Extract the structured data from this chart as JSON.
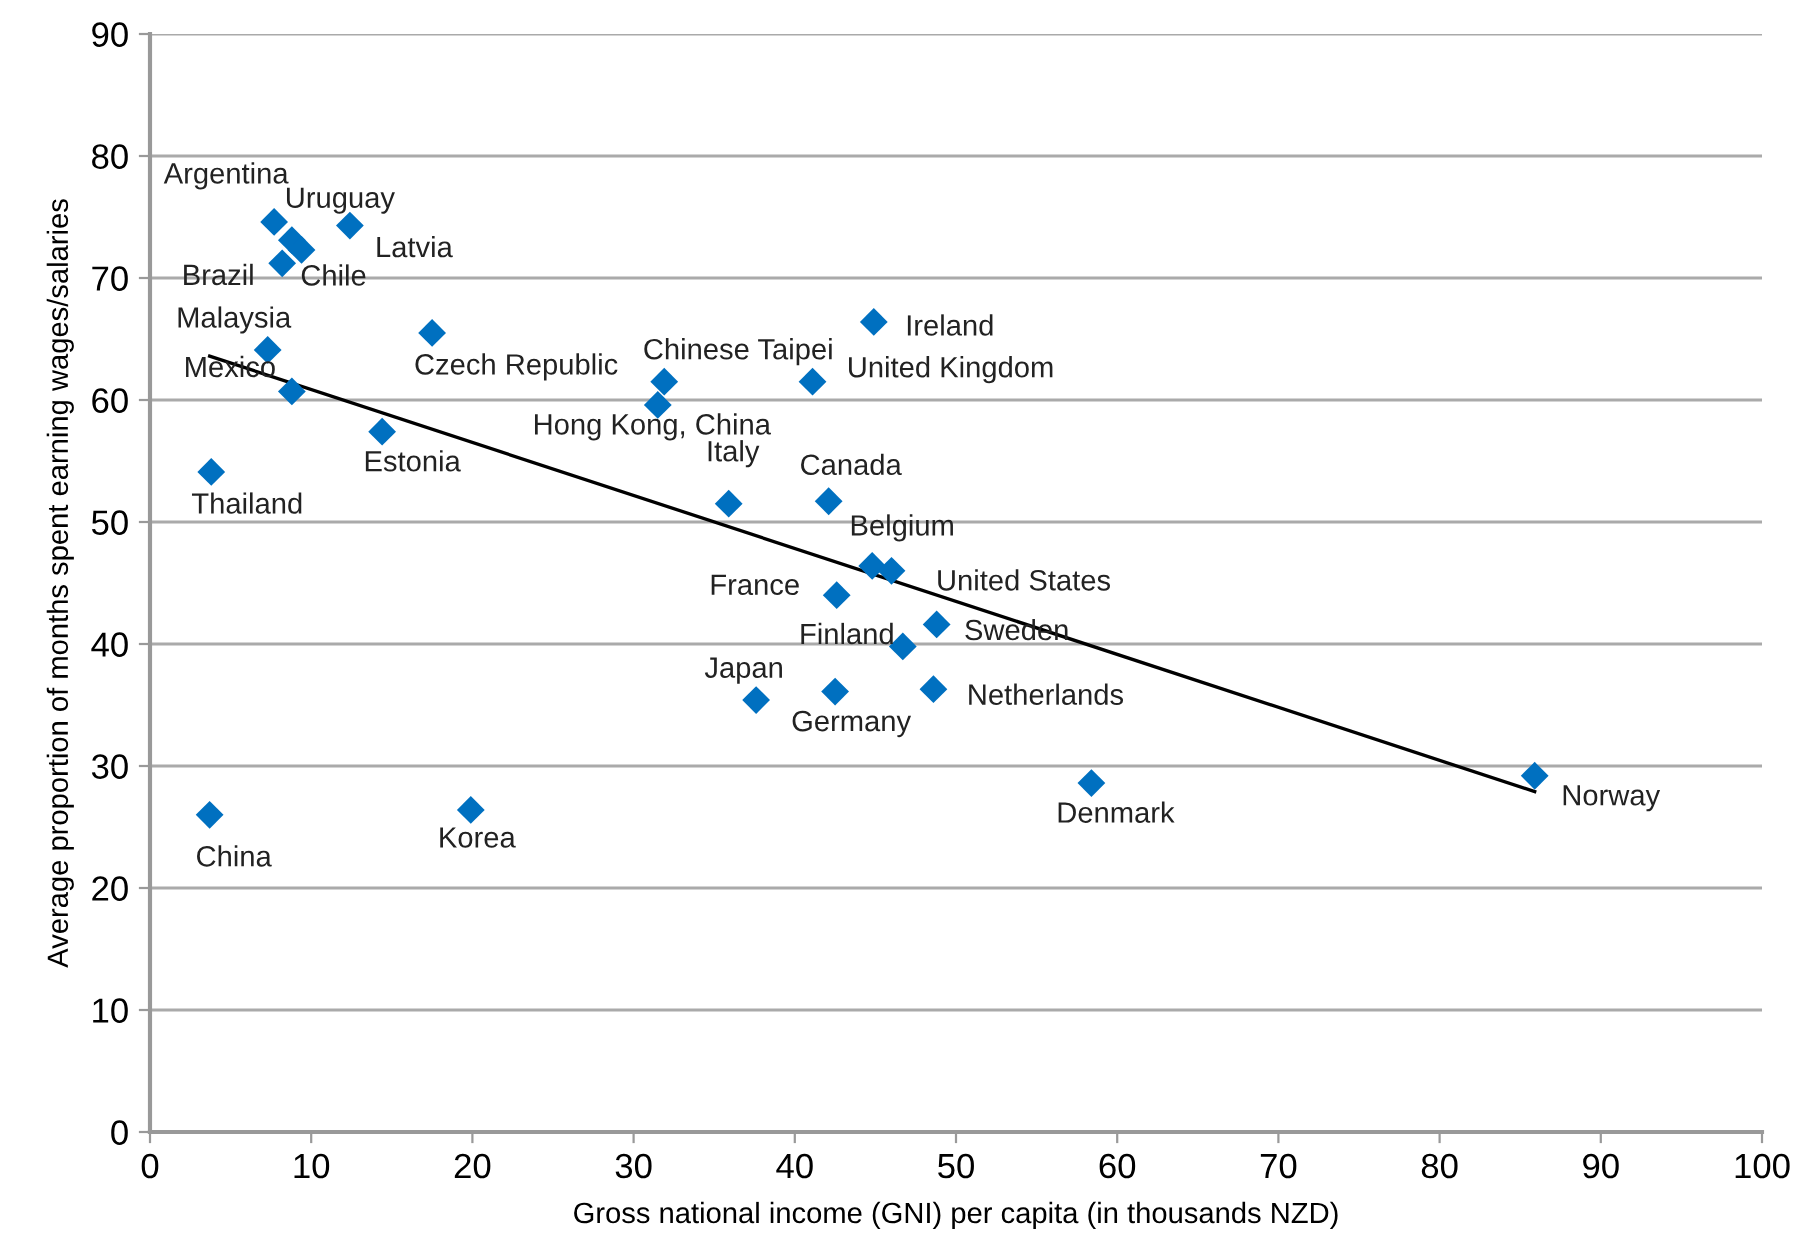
{
  "chart_data": {
    "type": "scatter",
    "xlabel": "Gross national income (GNI) per capita (in thousands NZD)",
    "ylabel": "Average proportion of months spent earning wages/salaries",
    "xlim": [
      0,
      100
    ],
    "xticks": [
      0,
      10,
      20,
      30,
      40,
      50,
      60,
      70,
      80,
      90,
      100
    ],
    "ylim": [
      0,
      90
    ],
    "yticks": [
      0,
      10,
      20,
      30,
      40,
      50,
      60,
      70,
      80,
      90
    ],
    "grid": "y",
    "legend": false,
    "series": [
      {
        "marker": "diamond",
        "color": "#0070c0",
        "x": [
          7.7,
          8.8,
          9.4,
          8.2,
          12.4,
          7.3,
          8.8,
          3.8,
          17.5,
          14.4,
          31.9,
          31.5,
          35.9,
          42.1,
          44.9,
          41.1,
          44.8,
          46.0,
          42.6,
          48.8,
          46.7,
          37.6,
          42.5,
          48.6,
          58.4,
          85.9,
          3.7,
          19.9
        ],
        "values": [
          74.6,
          73.1,
          72.3,
          71.2,
          74.3,
          64.1,
          60.7,
          54.1,
          65.5,
          57.4,
          61.5,
          59.6,
          51.5,
          51.7,
          66.4,
          61.5,
          46.4,
          46.0,
          44.0,
          41.6,
          39.8,
          35.4,
          36.1,
          36.3,
          28.6,
          29.2,
          26.0,
          26.4
        ]
      },
      {
        "type": "line",
        "color": "#000000",
        "x": [
          3.7,
          85.9
        ],
        "values": [
          63.6,
          27.9
        ]
      }
    ],
    "annotations": [
      {
        "text": "Argentina",
        "x": 7.7,
        "y": 74.6
      },
      {
        "text": "Uruguay",
        "x": 8.8,
        "y": 73.1
      },
      {
        "text": "Chile",
        "x": 9.4,
        "y": 72.3
      },
      {
        "text": "Brazil",
        "x": 8.2,
        "y": 71.2
      },
      {
        "text": "Latvia",
        "x": 12.4,
        "y": 74.3
      },
      {
        "text": "Malaysia",
        "x": 7.3,
        "y": 64.1
      },
      {
        "text": "Mexico",
        "x": 8.8,
        "y": 60.7
      },
      {
        "text": "Thailand",
        "x": 3.8,
        "y": 54.1
      },
      {
        "text": "Czech Republic",
        "x": 17.5,
        "y": 65.5
      },
      {
        "text": "Estonia",
        "x": 14.4,
        "y": 57.4
      },
      {
        "text": "Chinese Taipei",
        "x": 31.9,
        "y": 61.5
      },
      {
        "text": "Hong Kong, China",
        "x": 31.5,
        "y": 59.6
      },
      {
        "text": "Italy",
        "x": 35.9,
        "y": 51.5
      },
      {
        "text": "Canada",
        "x": 42.1,
        "y": 51.7
      },
      {
        "text": "Ireland",
        "x": 44.9,
        "y": 66.4
      },
      {
        "text": "United Kingdom",
        "x": 41.1,
        "y": 61.5
      },
      {
        "text": "Belgium",
        "x": 44.8,
        "y": 46.4
      },
      {
        "text": "United States",
        "x": 46.0,
        "y": 46.0
      },
      {
        "text": "France",
        "x": 42.6,
        "y": 44.0
      },
      {
        "text": "Sweden",
        "x": 48.8,
        "y": 41.6
      },
      {
        "text": "Finland",
        "x": 46.7,
        "y": 39.8
      },
      {
        "text": "Japan",
        "x": 37.6,
        "y": 35.4
      },
      {
        "text": "Germany",
        "x": 42.5,
        "y": 36.1
      },
      {
        "text": "Netherlands",
        "x": 48.6,
        "y": 36.3
      },
      {
        "text": "Denmark",
        "x": 58.4,
        "y": 28.6
      },
      {
        "text": "Norway",
        "x": 85.9,
        "y": 29.2
      },
      {
        "text": "China",
        "x": 3.7,
        "y": 26.0
      },
      {
        "text": "Korea",
        "x": 19.9,
        "y": 26.4
      }
    ]
  }
}
